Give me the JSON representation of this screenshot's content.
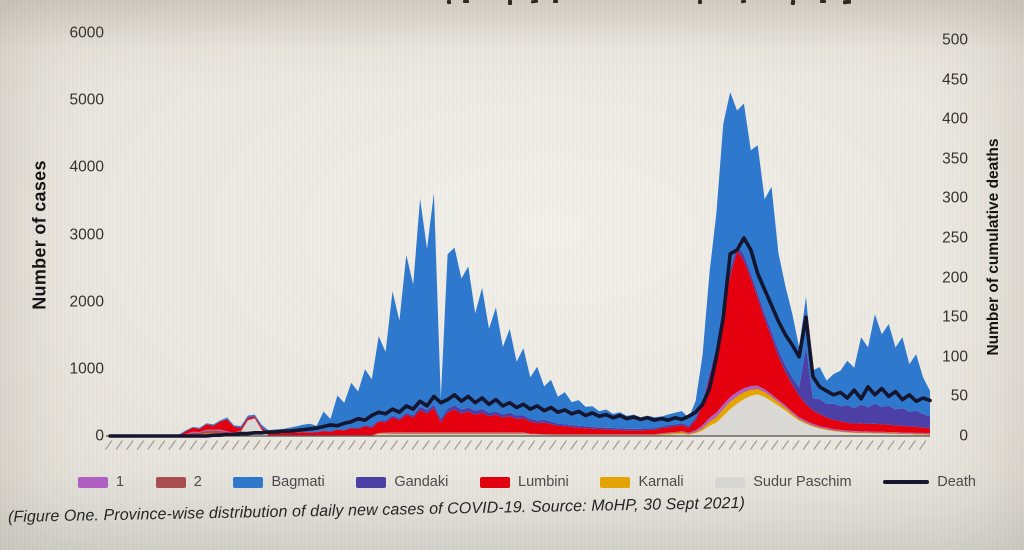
{
  "figure": {
    "caption": "(Figure One. Province-wise distribution of daily new cases of COVID-19. Source: MoHP, 30 Sept 2021)"
  },
  "colors": {
    "photo_background": "#eae7e0",
    "tick_text": "#36332e",
    "legend_text": "#4a4a4a",
    "axis_title_text": "#141414",
    "baseline": "#2a2a2a"
  },
  "chart_data": {
    "type": "area",
    "stacked": true,
    "n_points": 120,
    "x_axis": {
      "labels_legible": false,
      "tick_count": 78,
      "description": "daily dates, early 2020 to 30 Sept 2021, rotated tiny labels"
    },
    "left_axis": {
      "label": "Number of cases",
      "min": 0,
      "max": 6000,
      "step": 1000
    },
    "right_axis": {
      "label": "Number of  cumulative deaths",
      "min": 0,
      "max": 500,
      "step": 50
    },
    "stack_order": [
      "Sudur Paschim",
      "Karnali",
      "2",
      "1",
      "Lumbini",
      "Gandaki",
      "Bagmati"
    ],
    "legend": [
      {
        "label": "1",
        "color": "#b15fc4",
        "shape": "box"
      },
      {
        "label": "2",
        "color": "#ab4e50",
        "shape": "box"
      },
      {
        "label": "Bagmati",
        "color": "#2e79cd",
        "shape": "box"
      },
      {
        "label": "Gandaki",
        "color": "#4c3fa6",
        "shape": "box"
      },
      {
        "label": "Lumbini",
        "color": "#e4000e",
        "shape": "box"
      },
      {
        "label": "Karnali",
        "color": "#e7a500",
        "shape": "box"
      },
      {
        "label": "Sudur Paschim",
        "color": "#dbd9d6",
        "shape": "box"
      },
      {
        "label": "Death",
        "color": "#15152d",
        "shape": "line"
      }
    ],
    "series": [
      {
        "name": "Sudur Paschim",
        "color": "#dbd9d6",
        "axis": "left",
        "values": [
          0,
          0,
          0,
          0,
          0,
          0,
          0,
          0,
          0,
          0,
          0,
          0,
          0,
          0,
          0,
          0,
          0,
          0,
          0,
          60,
          230,
          260,
          90,
          5,
          5,
          5,
          5,
          5,
          5,
          5,
          5,
          5,
          5,
          5,
          5,
          5,
          5,
          5,
          5,
          25,
          25,
          25,
          25,
          25,
          25,
          25,
          25,
          25,
          25,
          25,
          25,
          25,
          25,
          25,
          25,
          25,
          25,
          25,
          25,
          25,
          25,
          20,
          18,
          15,
          12,
          10,
          10,
          10,
          10,
          10,
          10,
          10,
          10,
          10,
          10,
          10,
          10,
          10,
          10,
          10,
          15,
          20,
          25,
          30,
          20,
          40,
          80,
          150,
          200,
          300,
          400,
          480,
          550,
          600,
          620,
          580,
          520,
          450,
          380,
          300,
          230,
          180,
          140,
          110,
          90,
          70,
          60,
          50,
          45,
          40,
          40,
          35,
          35,
          30,
          30,
          25,
          25,
          20,
          20,
          15
        ]
      },
      {
        "name": "Karnali",
        "color": "#e7a500",
        "axis": "left",
        "values": [
          0,
          0,
          0,
          0,
          0,
          0,
          0,
          0,
          0,
          0,
          0,
          0,
          15,
          25,
          35,
          45,
          30,
          20,
          10,
          0,
          0,
          0,
          0,
          0,
          0,
          0,
          0,
          0,
          0,
          0,
          0,
          0,
          0,
          0,
          0,
          0,
          0,
          0,
          0,
          12,
          12,
          12,
          12,
          12,
          12,
          12,
          12,
          12,
          12,
          12,
          12,
          12,
          12,
          12,
          12,
          12,
          12,
          12,
          12,
          12,
          12,
          5,
          5,
          5,
          5,
          5,
          5,
          5,
          5,
          5,
          5,
          5,
          5,
          5,
          5,
          5,
          5,
          5,
          5,
          5,
          10,
          15,
          20,
          25,
          10,
          15,
          30,
          60,
          80,
          100,
          110,
          110,
          100,
          90,
          80,
          70,
          60,
          50,
          40,
          30,
          20,
          15,
          12,
          10,
          10,
          8,
          8,
          8,
          8,
          8,
          8,
          8,
          8,
          8,
          8,
          8,
          8,
          8,
          8,
          8
        ]
      },
      {
        "name": "2",
        "color": "#ab4e50",
        "axis": "left",
        "values": [
          0,
          0,
          0,
          0,
          0,
          0,
          0,
          0,
          0,
          0,
          0,
          20,
          35,
          25,
          45,
          35,
          50,
          40,
          30,
          20,
          10,
          5,
          5,
          5,
          5,
          5,
          5,
          5,
          5,
          5,
          5,
          5,
          5,
          5,
          5,
          5,
          5,
          5,
          5,
          5,
          5,
          8,
          8,
          8,
          8,
          8,
          8,
          8,
          8,
          8,
          8,
          8,
          8,
          8,
          8,
          8,
          8,
          8,
          8,
          8,
          8,
          4,
          4,
          4,
          4,
          4,
          4,
          4,
          4,
          4,
          4,
          4,
          4,
          4,
          4,
          4,
          4,
          4,
          4,
          4,
          10,
          10,
          10,
          10,
          10,
          10,
          10,
          10,
          10,
          10,
          10,
          10,
          10,
          10,
          10,
          10,
          10,
          10,
          10,
          10,
          10,
          10,
          10,
          10,
          10,
          10,
          10,
          10,
          10,
          10,
          10,
          10,
          10,
          10,
          10,
          10,
          10,
          10,
          10,
          10
        ]
      },
      {
        "name": "1",
        "color": "#b15fc4",
        "axis": "left",
        "values": [
          0,
          0,
          0,
          0,
          0,
          0,
          0,
          0,
          0,
          0,
          0,
          8,
          12,
          10,
          15,
          12,
          15,
          10,
          8,
          3,
          3,
          3,
          3,
          3,
          3,
          3,
          3,
          3,
          3,
          3,
          3,
          3,
          3,
          3,
          3,
          3,
          3,
          3,
          3,
          3,
          10,
          10,
          10,
          10,
          10,
          10,
          10,
          10,
          10,
          10,
          10,
          10,
          10,
          10,
          10,
          10,
          10,
          10,
          10,
          10,
          10,
          5,
          5,
          5,
          5,
          5,
          5,
          5,
          5,
          5,
          5,
          5,
          5,
          5,
          5,
          5,
          5,
          5,
          5,
          5,
          5,
          5,
          5,
          5,
          10,
          20,
          40,
          50,
          60,
          60,
          60,
          55,
          50,
          45,
          40,
          35,
          30,
          28,
          26,
          24,
          22,
          20,
          18,
          16,
          15,
          14,
          13,
          12,
          12,
          11,
          11,
          10,
          10,
          10,
          9,
          9,
          8,
          8,
          8,
          8
        ]
      },
      {
        "name": "Lumbini",
        "color": "#e4000e",
        "axis": "left",
        "values": [
          0,
          0,
          0,
          0,
          0,
          0,
          0,
          0,
          0,
          0,
          10,
          40,
          60,
          45,
          80,
          60,
          120,
          180,
          90,
          40,
          30,
          25,
          35,
          30,
          35,
          30,
          35,
          40,
          45,
          40,
          40,
          60,
          50,
          80,
          70,
          100,
          90,
          130,
          110,
          170,
          150,
          220,
          180,
          260,
          220,
          330,
          280,
          360,
          150,
          300,
          340,
          280,
          310,
          260,
          290,
          240,
          260,
          220,
          240,
          200,
          210,
          180,
          160,
          170,
          150,
          130,
          120,
          110,
          100,
          90,
          85,
          80,
          75,
          70,
          65,
          60,
          60,
          60,
          65,
          70,
          75,
          80,
          85,
          90,
          70,
          150,
          300,
          600,
          900,
          1400,
          1800,
          2100,
          1900,
          1600,
          1300,
          1050,
          850,
          650,
          500,
          400,
          320,
          250,
          200,
          180,
          150,
          140,
          130,
          120,
          110,
          120,
          110,
          120,
          110,
          110,
          100,
          100,
          90,
          90,
          80,
          70
        ]
      },
      {
        "name": "Gandaki",
        "color": "#4c3fa6",
        "axis": "left",
        "values": [
          0,
          0,
          0,
          0,
          0,
          0,
          0,
          0,
          0,
          0,
          0,
          0,
          0,
          0,
          0,
          0,
          0,
          0,
          0,
          0,
          0,
          0,
          0,
          0,
          0,
          0,
          0,
          0,
          0,
          0,
          10,
          10,
          10,
          10,
          10,
          20,
          20,
          20,
          20,
          20,
          30,
          30,
          30,
          30,
          30,
          50,
          50,
          50,
          50,
          50,
          60,
          60,
          60,
          60,
          60,
          50,
          50,
          50,
          50,
          50,
          40,
          40,
          40,
          40,
          40,
          30,
          30,
          30,
          30,
          30,
          25,
          25,
          25,
          25,
          25,
          25,
          25,
          25,
          25,
          25,
          25,
          30,
          30,
          30,
          30,
          40,
          50,
          60,
          70,
          80,
          90,
          90,
          90,
          80,
          80,
          80,
          90,
          90,
          100,
          110,
          120,
          850,
          180,
          220,
          200,
          240,
          220,
          260,
          230,
          280,
          250,
          300,
          260,
          280,
          240,
          260,
          220,
          240,
          200,
          180
        ]
      },
      {
        "name": "Bagmati",
        "color": "#2e79cd",
        "axis": "left",
        "values": [
          0,
          0,
          0,
          0,
          2,
          3,
          4,
          6,
          8,
          10,
          12,
          15,
          12,
          18,
          15,
          20,
          18,
          25,
          20,
          25,
          30,
          25,
          35,
          40,
          50,
          60,
          75,
          90,
          110,
          130,
          90,
          280,
          180,
          500,
          400,
          660,
          540,
          830,
          700,
          1250,
          1020,
          1850,
          1450,
          2350,
          1950,
          3100,
          2400,
          3150,
          300,
          2300,
          2350,
          1950,
          2100,
          1450,
          1800,
          1250,
          1550,
          1000,
          1250,
          800,
          1000,
          620,
          800,
          500,
          620,
          400,
          480,
          340,
          380,
          290,
          310,
          240,
          270,
          210,
          240,
          190,
          210,
          170,
          190,
          160,
          150,
          160,
          170,
          180,
          120,
          250,
          700,
          1500,
          2000,
          2700,
          2650,
          2000,
          2250,
          1830,
          2200,
          1700,
          2150,
          1450,
          1180,
          950,
          600,
          750,
          420,
          480,
          350,
          440,
          530,
          660,
          600,
          1000,
          890,
          1330,
          1080,
          1220,
          920,
          1060,
          710,
          840,
          545,
          380
        ]
      },
      {
        "name": "Death",
        "color": "#15152d",
        "axis": "right",
        "render": "line",
        "values": [
          0,
          0,
          0,
          0,
          0,
          0,
          0,
          0,
          0,
          0,
          0,
          0,
          0,
          0,
          0,
          1,
          1,
          2,
          2,
          3,
          3,
          4,
          4,
          5,
          5,
          6,
          6,
          7,
          8,
          9,
          10,
          12,
          14,
          13,
          16,
          18,
          22,
          20,
          26,
          30,
          28,
          34,
          30,
          38,
          34,
          44,
          38,
          50,
          42,
          46,
          52,
          44,
          50,
          42,
          48,
          40,
          46,
          38,
          42,
          36,
          40,
          34,
          38,
          32,
          36,
          30,
          33,
          28,
          31,
          26,
          29,
          25,
          27,
          23,
          26,
          22,
          24,
          21,
          23,
          20,
          22,
          20,
          23,
          21,
          25,
          30,
          40,
          60,
          100,
          150,
          230,
          235,
          250,
          235,
          205,
          185,
          165,
          145,
          128,
          115,
          100,
          150,
          75,
          62,
          57,
          52,
          55,
          48,
          58,
          47,
          62,
          52,
          60,
          50,
          56,
          46,
          52,
          44,
          48,
          45
        ]
      }
    ]
  }
}
